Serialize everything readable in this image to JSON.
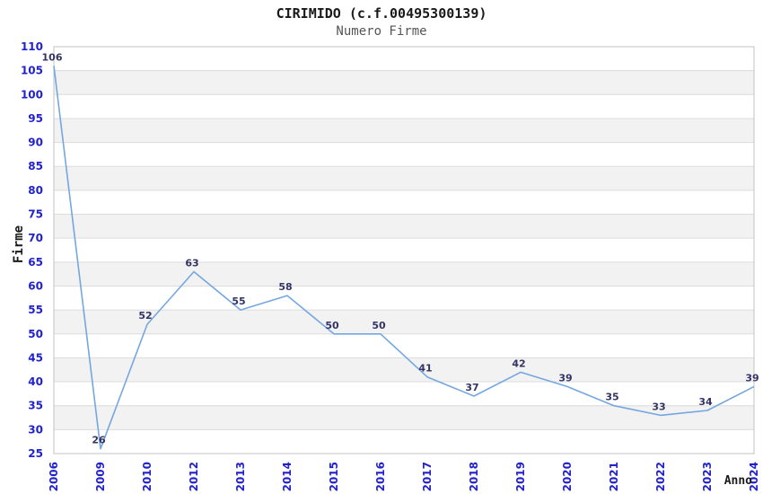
{
  "chart_data": {
    "type": "line",
    "title": "CIRIMIDO (c.f.00495300139)",
    "subtitle": "Numero Firme",
    "xlabel": "Anno",
    "ylabel": "Firme",
    "categories": [
      "2006",
      "2009",
      "2010",
      "2012",
      "2013",
      "2014",
      "2015",
      "2016",
      "2017",
      "2018",
      "2019",
      "2020",
      "2021",
      "2022",
      "2023",
      "2024"
    ],
    "values": [
      106,
      26,
      52,
      63,
      55,
      58,
      50,
      50,
      41,
      37,
      42,
      39,
      35,
      33,
      34,
      39
    ],
    "ylim": [
      25,
      110
    ],
    "ytick_step": 5,
    "grid": "horizontal-only",
    "legend": "none",
    "markers": "none",
    "background_bands": "alternating white/gray, 5-unit bands, white at top",
    "x_tick_rotation": -90,
    "data_labels_shown": true,
    "colors": {
      "line": "#74a7e0",
      "tick_label": "#2222cc",
      "data_label": "#333366",
      "band": "#f2f2f2",
      "gridline": "#dcdcdc",
      "plot_border": "#c3c3c3",
      "title": "#1a1a1a",
      "subtitle": "#555555",
      "axis_title": "#1a1a1a",
      "background": "#ffffff"
    }
  }
}
